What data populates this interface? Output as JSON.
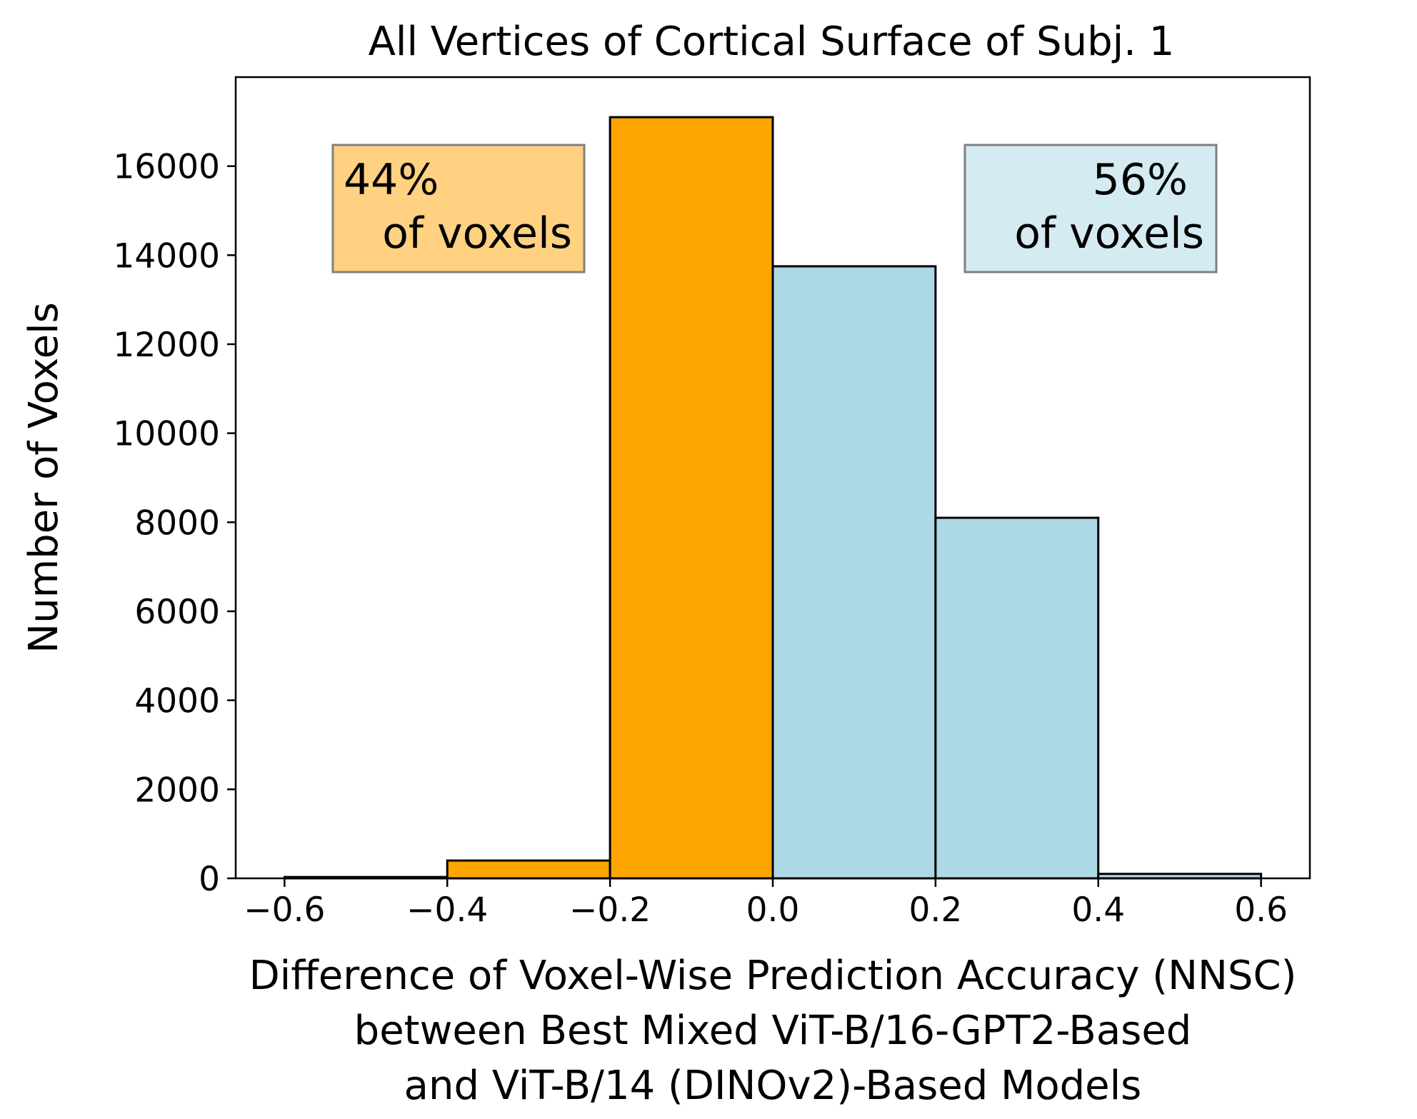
{
  "chart_data": {
    "type": "bar",
    "title": "All Vertices of Cortical Surface of Subj. 1",
    "xlabel_lines": [
      "Difference of Voxel-Wise Prediction Accuracy (NNSC)",
      "between Best Mixed ViT-B/16-GPT2-Based",
      "and ViT-B/14 (DINOv2)-Based Models"
    ],
    "ylabel": "Number of Voxels",
    "xlim": [
      -0.66,
      0.66
    ],
    "ylim": [
      0,
      18000
    ],
    "x_ticks": [
      -0.6,
      -0.4,
      -0.2,
      0.0,
      0.2,
      0.4,
      0.6
    ],
    "x_tick_labels": [
      "−0.6",
      "−0.4",
      "−0.2",
      "0.0",
      "0.2",
      "0.4",
      "0.6"
    ],
    "y_ticks": [
      0,
      2000,
      4000,
      6000,
      8000,
      10000,
      12000,
      14000,
      16000
    ],
    "y_tick_labels": [
      "0",
      "2000",
      "4000",
      "6000",
      "8000",
      "10000",
      "12000",
      "14000",
      "16000"
    ],
    "bins": [
      {
        "x0": -0.6,
        "x1": -0.4,
        "count": 30,
        "color": "#FFA500"
      },
      {
        "x0": -0.4,
        "x1": -0.2,
        "count": 400,
        "color": "#FFA500"
      },
      {
        "x0": -0.2,
        "x1": 0.0,
        "count": 17100,
        "color": "#FFA500"
      },
      {
        "x0": 0.0,
        "x1": 0.2,
        "count": 13750,
        "color": "#ADD8E6"
      },
      {
        "x0": 0.2,
        "x1": 0.4,
        "count": 8100,
        "color": "#ADD8E6"
      },
      {
        "x0": 0.4,
        "x1": 0.6,
        "count": 100,
        "color": "#ADD8E6"
      }
    ],
    "annotations": [
      {
        "lines": [
          "44%",
          "of voxels"
        ],
        "color": "#FFD180",
        "position": "top-left"
      },
      {
        "lines": [
          "56%",
          "of voxels"
        ],
        "color": "#D5EBF2",
        "position": "top-right"
      }
    ],
    "grid": false,
    "legend": "none"
  }
}
